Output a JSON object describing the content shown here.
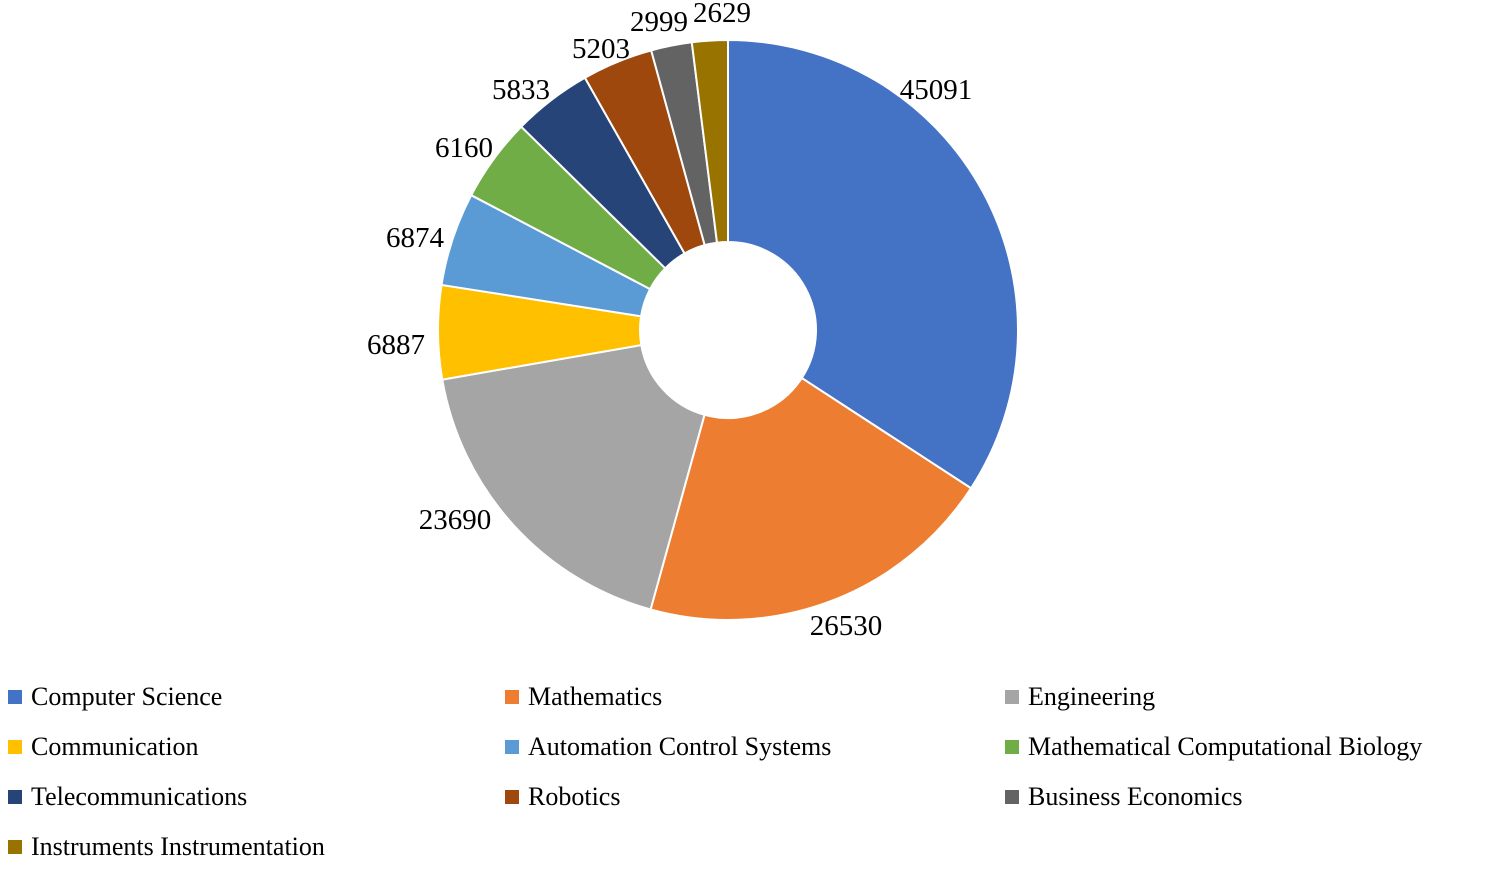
{
  "chart_data": {
    "type": "pie",
    "subtype": "donut",
    "title": "",
    "legend_position": "bottom",
    "start_angle_deg": 0,
    "direction": "clockwise",
    "categories": [
      "Computer Science",
      "Mathematics",
      "Engineering",
      "Communication",
      "Automation Control Systems",
      "Mathematical Computational Biology",
      "Telecommunications",
      "Robotics",
      "Business Economics",
      "Instruments Instrumentation"
    ],
    "values": [
      45091,
      26530,
      23690,
      6887,
      6874,
      6160,
      5833,
      5203,
      2999,
      2629
    ],
    "data_labels": [
      "45091",
      "26530",
      "23690",
      "6887",
      "6874",
      "6160",
      "5833",
      "5203",
      "2999",
      "2629"
    ],
    "colors": [
      "#4472C4",
      "#ED7D31",
      "#A5A5A5",
      "#FFC000",
      "#5B9BD5",
      "#70AD47",
      "#264478",
      "#9E480E",
      "#636363",
      "#997300"
    ],
    "label_color": "#000000",
    "slice_border_color": "#FFFFFF"
  }
}
